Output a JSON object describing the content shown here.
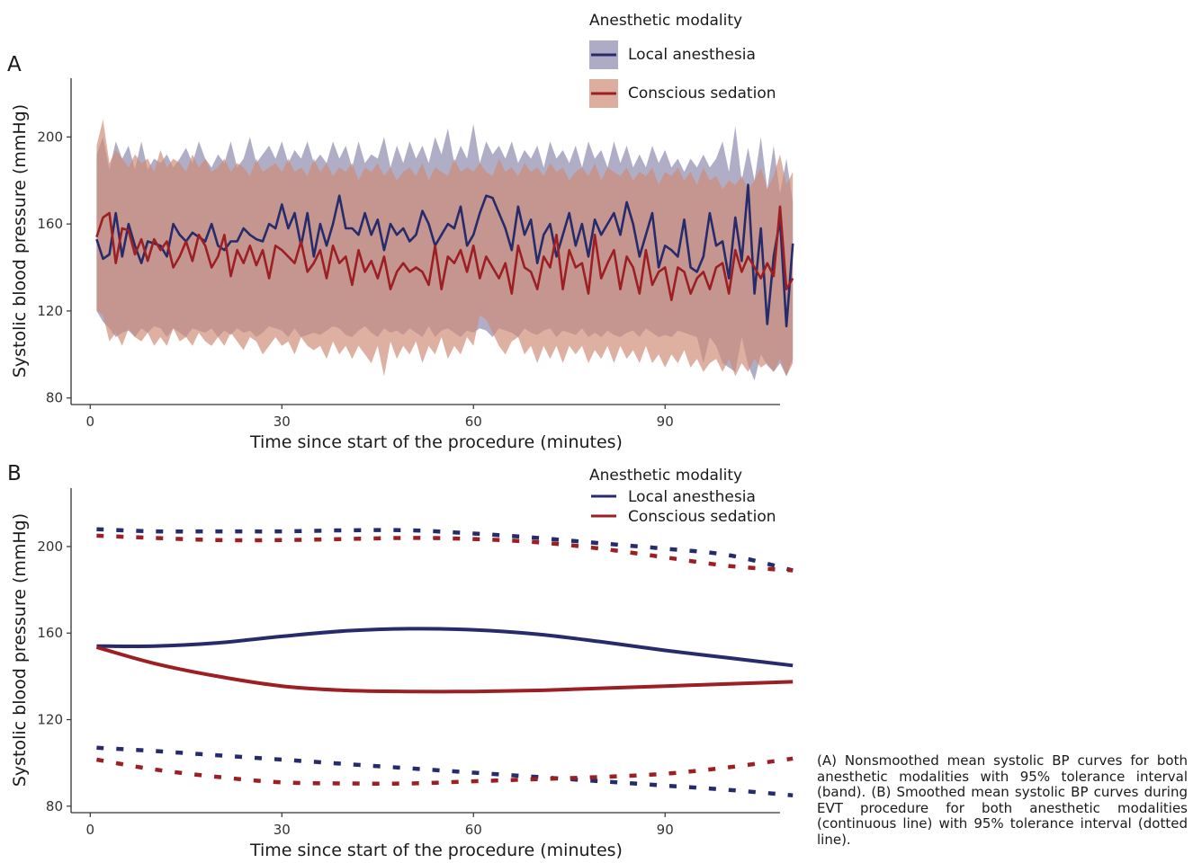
{
  "caption": "(A) Nonsmoothed mean systolic BP curves for both anesthetic modalities with 95% tolerance interval (band). (B) Smoothed mean systolic BP curves during EVT procedure for both anesthetic modalities (continuous line) with 95% tolerance interval (dotted line).",
  "colors": {
    "local_line": "#262b6b",
    "local_band": "#8b87ad",
    "sedation_line": "#9c1f24",
    "sedation_band": "#cf8a76"
  },
  "chart_data": [
    {
      "panel": "A",
      "type": "line",
      "title": "",
      "xlabel": "Time since start of the procedure (minutes)",
      "ylabel": "Systolic blood pressure (mmHg)",
      "xlim": [
        -3,
        108
      ],
      "ylim": [
        77,
        227
      ],
      "xticks": [
        0,
        30,
        60,
        90
      ],
      "yticks": [
        80,
        120,
        160,
        200
      ],
      "grid": false,
      "legend_position": "top-right",
      "legend_title": "Anesthetic modality",
      "x": [
        1,
        2,
        3,
        4,
        5,
        6,
        7,
        8,
        9,
        10,
        11,
        12,
        13,
        14,
        15,
        16,
        17,
        18,
        19,
        20,
        21,
        22,
        23,
        24,
        25,
        26,
        27,
        28,
        29,
        30,
        31,
        32,
        33,
        34,
        35,
        36,
        37,
        38,
        39,
        40,
        41,
        42,
        43,
        44,
        45,
        46,
        47,
        48,
        49,
        50,
        51,
        52,
        53,
        54,
        55,
        56,
        57,
        58,
        59,
        60,
        61,
        62,
        63,
        64,
        65,
        66,
        67,
        68,
        69,
        70,
        71,
        72,
        73,
        74,
        75,
        76,
        77,
        78,
        79,
        80,
        81,
        82,
        83,
        84,
        85,
        86,
        87,
        88,
        89,
        90,
        91,
        92,
        93,
        94,
        95,
        96,
        97,
        98,
        99,
        100,
        101,
        102,
        103,
        104,
        105,
        106,
        107,
        108,
        109,
        110
      ],
      "series": [
        {
          "name": "Local anesthesia",
          "mean": [
            153,
            144,
            146,
            165,
            145,
            160,
            150,
            142,
            152,
            151,
            150,
            145,
            160,
            155,
            152,
            156,
            154,
            152,
            160,
            150,
            148,
            152,
            152,
            158,
            155,
            153,
            152,
            160,
            158,
            169,
            158,
            165,
            150,
            165,
            145,
            160,
            150,
            160,
            173,
            158,
            158,
            155,
            165,
            155,
            162,
            148,
            160,
            155,
            158,
            152,
            155,
            166,
            160,
            150,
            155,
            160,
            158,
            168,
            150,
            155,
            165,
            173,
            172,
            165,
            158,
            148,
            168,
            155,
            162,
            142,
            155,
            160,
            145,
            155,
            165,
            150,
            160,
            145,
            162,
            155,
            160,
            165,
            155,
            170,
            160,
            145,
            155,
            165,
            140,
            150,
            148,
            145,
            162,
            140,
            138,
            145,
            165,
            150,
            152,
            135,
            163,
            143,
            178,
            128,
            158,
            114,
            145,
            162,
            113,
            151
          ],
          "lower": [
            120,
            115,
            112,
            108,
            110,
            111,
            108,
            112,
            110,
            113,
            112,
            108,
            112,
            110,
            108,
            112,
            111,
            110,
            112,
            108,
            111,
            109,
            112,
            110,
            111,
            108,
            110,
            113,
            112,
            111,
            108,
            112,
            108,
            109,
            110,
            109,
            111,
            113,
            112,
            109,
            108,
            111,
            113,
            110,
            108,
            112,
            110,
            111,
            109,
            112,
            110,
            108,
            113,
            108,
            111,
            112,
            110,
            108,
            111,
            110,
            112,
            111,
            108,
            112,
            111,
            110,
            108,
            112,
            110,
            109,
            111,
            112,
            108,
            111,
            110,
            109,
            112,
            108,
            110,
            108,
            111,
            109,
            108,
            110,
            111,
            108,
            112,
            110,
            108,
            109,
            108,
            111,
            110,
            109,
            108,
            96,
            108,
            104,
            96,
            94,
            92,
            108,
            95,
            88,
            100,
            95,
            92,
            96,
            90,
            98
          ],
          "upper": [
            192,
            200,
            185,
            198,
            190,
            196,
            185,
            198,
            185,
            190,
            188,
            192,
            186,
            190,
            195,
            188,
            198,
            190,
            186,
            192,
            188,
            198,
            186,
            190,
            200,
            188,
            192,
            196,
            190,
            198,
            188,
            194,
            190,
            198,
            188,
            192,
            188,
            198,
            190,
            196,
            186,
            198,
            188,
            192,
            190,
            200,
            186,
            196,
            188,
            198,
            190,
            196,
            188,
            200,
            192,
            204,
            188,
            196,
            190,
            206,
            188,
            198,
            192,
            196,
            190,
            198,
            188,
            194,
            190,
            196,
            186,
            198,
            190,
            194,
            188,
            196,
            186,
            198,
            190,
            194,
            186,
            198,
            188,
            196,
            186,
            192,
            186,
            196,
            188,
            194,
            186,
            190,
            184,
            190,
            186,
            192,
            186,
            190,
            198,
            184,
            205,
            180,
            195,
            180,
            200,
            176,
            196,
            174,
            190,
            170
          ]
        },
        {
          "name": "Conscious sedation",
          "mean": [
            154,
            163,
            165,
            142,
            158,
            157,
            146,
            153,
            143,
            153,
            148,
            152,
            140,
            145,
            152,
            143,
            155,
            150,
            140,
            145,
            155,
            136,
            148,
            142,
            150,
            141,
            148,
            135,
            150,
            148,
            145,
            142,
            152,
            138,
            142,
            148,
            135,
            150,
            142,
            145,
            132,
            148,
            138,
            143,
            135,
            145,
            130,
            138,
            142,
            138,
            140,
            138,
            132,
            150,
            130,
            145,
            142,
            148,
            138,
            150,
            135,
            145,
            140,
            135,
            142,
            128,
            150,
            140,
            138,
            130,
            145,
            140,
            155,
            130,
            148,
            140,
            142,
            128,
            155,
            135,
            142,
            148,
            130,
            145,
            140,
            128,
            148,
            132,
            138,
            140,
            125,
            140,
            138,
            128,
            135,
            138,
            130,
            140,
            142,
            128,
            148,
            138,
            145,
            140,
            135,
            142,
            136,
            168,
            130,
            135
          ],
          "lower": [
            120,
            118,
            106,
            110,
            104,
            112,
            108,
            106,
            110,
            104,
            108,
            104,
            112,
            106,
            108,
            104,
            110,
            106,
            104,
            108,
            104,
            110,
            106,
            102,
            108,
            106,
            100,
            104,
            108,
            104,
            106,
            100,
            108,
            104,
            102,
            104,
            98,
            106,
            100,
            104,
            98,
            104,
            100,
            96,
            104,
            90,
            106,
            98,
            104,
            100,
            106,
            96,
            104,
            100,
            108,
            98,
            104,
            100,
            108,
            104,
            118,
            116,
            110,
            104,
            100,
            106,
            108,
            100,
            104,
            96,
            104,
            98,
            104,
            96,
            104,
            100,
            104,
            96,
            102,
            98,
            104,
            96,
            104,
            98,
            102,
            96,
            104,
            96,
            100,
            94,
            100,
            96,
            102,
            94,
            98,
            92,
            96,
            98,
            92,
            98,
            90,
            96,
            92,
            98,
            94,
            96,
            92,
            98,
            90,
            96
          ],
          "upper": [
            196,
            208,
            188,
            194,
            190,
            186,
            192,
            188,
            190,
            184,
            194,
            186,
            190,
            188,
            184,
            192,
            186,
            190,
            184,
            186,
            190,
            184,
            188,
            186,
            182,
            190,
            184,
            186,
            188,
            184,
            190,
            184,
            186,
            182,
            190,
            184,
            188,
            182,
            186,
            184,
            188,
            180,
            186,
            184,
            188,
            182,
            186,
            180,
            184,
            186,
            182,
            188,
            180,
            186,
            184,
            182,
            190,
            184,
            186,
            184,
            188,
            184,
            182,
            190,
            184,
            186,
            182,
            188,
            184,
            186,
            182,
            188,
            184,
            186,
            180,
            184,
            186,
            182,
            188,
            180,
            186,
            184,
            182,
            186,
            180,
            184,
            182,
            186,
            178,
            184,
            182,
            186,
            180,
            184,
            178,
            186,
            180,
            182,
            176,
            180,
            178,
            182,
            176,
            180,
            186,
            176,
            182,
            192,
            178,
            184
          ]
        }
      ]
    },
    {
      "panel": "B",
      "type": "line",
      "title": "",
      "xlabel": "Time since start of the procedure (minutes)",
      "ylabel": "Systolic blood pressure (mmHg)",
      "xlim": [
        -3,
        108
      ],
      "ylim": [
        77,
        227
      ],
      "xticks": [
        0,
        30,
        60,
        90
      ],
      "yticks": [
        80,
        120,
        160,
        200
      ],
      "grid": false,
      "legend_position": "top-right",
      "legend_title": "Anesthetic modality",
      "x": [
        1,
        10,
        20,
        30,
        40,
        50,
        60,
        70,
        80,
        90,
        100,
        110
      ],
      "series": [
        {
          "name": "Local anesthesia",
          "mean": [
            154,
            154,
            155.5,
            158.5,
            161,
            162,
            161.5,
            159.5,
            156,
            152,
            148.5,
            145
          ],
          "lower": [
            107,
            105.5,
            103.5,
            101.5,
            99.5,
            97.5,
            95.5,
            93.5,
            91.5,
            89.5,
            87.5,
            85
          ],
          "upper": [
            208,
            207,
            207,
            207,
            207.5,
            207.5,
            206,
            204,
            201.5,
            199,
            196,
            189
          ]
        },
        {
          "name": "Conscious sedation",
          "mean": [
            153.5,
            146,
            140,
            135.5,
            133.5,
            133,
            133,
            133.5,
            134.5,
            135.5,
            136.5,
            137.5
          ],
          "lower": [
            101.5,
            97,
            93.5,
            91,
            90.5,
            90.5,
            91.5,
            92.5,
            93.5,
            95,
            98,
            102
          ],
          "upper": [
            205,
            204,
            203,
            203,
            203.5,
            204,
            203.5,
            202,
            199,
            195,
            191,
            189
          ]
        }
      ]
    }
  ]
}
